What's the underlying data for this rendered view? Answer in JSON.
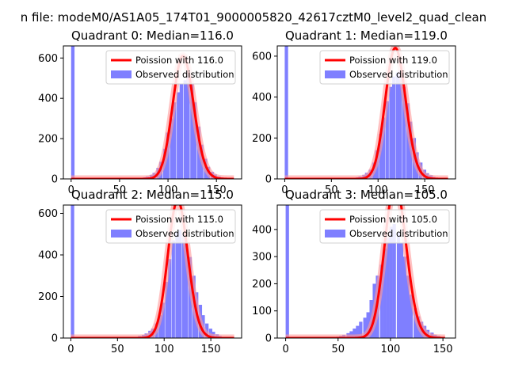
{
  "figure": {
    "suptitle": "n file: modeM0/AS1A05_174T01_9000005820_42617cztM0_level2_quad_clean"
  },
  "colors": {
    "hist": "#7f7fff",
    "fit": "#ff0000",
    "fit_halo": "#ff9a9a"
  },
  "chart_data": [
    {
      "type": "bar",
      "title": "Quadrant 0: Median=116.0",
      "xlim": [
        -8,
        176
      ],
      "ylim": [
        0,
        660
      ],
      "xticks": [
        0,
        50,
        100,
        150
      ],
      "yticks": [
        0,
        200,
        400,
        600
      ],
      "legend": {
        "placement": "top-right",
        "entries": [
          "Poission with 116.0",
          "Observed distribution"
        ]
      },
      "series": [
        {
          "name": "Observed distribution",
          "type": "histogram",
          "bin_width": 3.5,
          "bins": [
            [
              0,
              660
            ],
            [
              70,
              5
            ],
            [
              74,
              8
            ],
            [
              77,
              12
            ],
            [
              81,
              20
            ],
            [
              84,
              30
            ],
            [
              88,
              55
            ],
            [
              91,
              85
            ],
            [
              95,
              150
            ],
            [
              98,
              230
            ],
            [
              102,
              300
            ],
            [
              105,
              380
            ],
            [
              109,
              430
            ],
            [
              112,
              470
            ],
            [
              116,
              490
            ],
            [
              119,
              520
            ],
            [
              123,
              470
            ],
            [
              126,
              380
            ],
            [
              130,
              260
            ],
            [
              133,
              170
            ],
            [
              137,
              100
            ],
            [
              140,
              60
            ],
            [
              144,
              35
            ],
            [
              147,
              22
            ],
            [
              151,
              12
            ],
            [
              154,
              8
            ],
            [
              158,
              5
            ],
            [
              161,
              3
            ]
          ]
        },
        {
          "name": "Poission with 116.0",
          "type": "poisson",
          "lambda": 116.0,
          "x_range": [
            0,
            168
          ]
        }
      ]
    },
    {
      "type": "bar",
      "title": "Quadrant 1: Median=119.0",
      "xlim": [
        -8,
        183
      ],
      "ylim": [
        0,
        650
      ],
      "xticks": [
        0,
        50,
        100,
        150
      ],
      "yticks": [
        0,
        200,
        400,
        600
      ],
      "legend": {
        "placement": "top-right",
        "entries": [
          "Poission with 119.0",
          "Observed distribution"
        ]
      },
      "series": [
        {
          "name": "Observed distribution",
          "type": "histogram",
          "bin_width": 3.6,
          "bins": [
            [
              0,
              650
            ],
            [
              72,
              5
            ],
            [
              76,
              8
            ],
            [
              79,
              12
            ],
            [
              83,
              20
            ],
            [
              86,
              30
            ],
            [
              90,
              45
            ],
            [
              94,
              80
            ],
            [
              97,
              140
            ],
            [
              101,
              220
            ],
            [
              104,
              300
            ],
            [
              108,
              380
            ],
            [
              112,
              450
            ],
            [
              115,
              500
            ],
            [
              119,
              520
            ],
            [
              122,
              530
            ],
            [
              126,
              450
            ],
            [
              130,
              370
            ],
            [
              133,
              280
            ],
            [
              137,
              200
            ],
            [
              140,
              130
            ],
            [
              144,
              80
            ],
            [
              148,
              45
            ],
            [
              151,
              28
            ],
            [
              155,
              18
            ],
            [
              158,
              10
            ],
            [
              162,
              6
            ],
            [
              166,
              3
            ]
          ]
        },
        {
          "name": "Poission with 119.0",
          "type": "poisson",
          "lambda": 119.0,
          "x_range": [
            0,
            175
          ]
        }
      ]
    },
    {
      "type": "bar",
      "title": "Quadrant 2: Median=115.0",
      "xlim": [
        -8,
        183
      ],
      "ylim": [
        0,
        640
      ],
      "xticks": [
        0,
        50,
        100,
        150
      ],
      "yticks": [
        0,
        200,
        400,
        600
      ],
      "legend": {
        "placement": "top-right",
        "entries": [
          "Poission with 115.0",
          "Observed distribution"
        ]
      },
      "series": [
        {
          "name": "Observed distribution",
          "type": "histogram",
          "bin_width": 3.6,
          "bins": [
            [
              0,
              640
            ],
            [
              72,
              10
            ],
            [
              76,
              15
            ],
            [
              79,
              22
            ],
            [
              83,
              35
            ],
            [
              86,
              45
            ],
            [
              90,
              70
            ],
            [
              94,
              110
            ],
            [
              97,
              170
            ],
            [
              101,
              270
            ],
            [
              104,
              380
            ],
            [
              108,
              470
            ],
            [
              112,
              510
            ],
            [
              115,
              520
            ],
            [
              119,
              500
            ],
            [
              122,
              450
            ],
            [
              126,
              390
            ],
            [
              130,
              300
            ],
            [
              133,
              220
            ],
            [
              137,
              160
            ],
            [
              140,
              110
            ],
            [
              144,
              70
            ],
            [
              148,
              45
            ],
            [
              151,
              30
            ],
            [
              155,
              18
            ],
            [
              158,
              10
            ],
            [
              162,
              5
            ]
          ]
        },
        {
          "name": "Poission with 115.0",
          "type": "poisson",
          "lambda": 115.0,
          "x_range": [
            0,
            175
          ]
        }
      ]
    },
    {
      "type": "bar",
      "title": "Quadrant 3: Median=105.0",
      "xlim": [
        -8,
        162
      ],
      "ylim": [
        0,
        490
      ],
      "xticks": [
        0,
        50,
        100,
        150
      ],
      "yticks": [
        0,
        100,
        200,
        300,
        400
      ],
      "legend": {
        "placement": "top-right",
        "entries": [
          "Poission with 105.0",
          "Observed distribution"
        ]
      },
      "series": [
        {
          "name": "Observed distribution",
          "type": "histogram",
          "bin_width": 3.2,
          "bins": [
            [
              0,
              490
            ],
            [
              45,
              3
            ],
            [
              48,
              5
            ],
            [
              51,
              8
            ],
            [
              54,
              12
            ],
            [
              58,
              18
            ],
            [
              61,
              25
            ],
            [
              64,
              35
            ],
            [
              67,
              45
            ],
            [
              70,
              60
            ],
            [
              74,
              75
            ],
            [
              77,
              95
            ],
            [
              80,
              140
            ],
            [
              83,
              200
            ],
            [
              86,
              230
            ],
            [
              90,
              270
            ],
            [
              93,
              330
            ],
            [
              96,
              370
            ],
            [
              99,
              410
            ],
            [
              102,
              420
            ],
            [
              106,
              390
            ],
            [
              109,
              350
            ],
            [
              112,
              300
            ],
            [
              115,
              230
            ],
            [
              118,
              160
            ],
            [
              122,
              110
            ],
            [
              125,
              80
            ],
            [
              128,
              60
            ],
            [
              131,
              45
            ],
            [
              134,
              30
            ],
            [
              138,
              20
            ],
            [
              141,
              12
            ],
            [
              144,
              8
            ]
          ]
        },
        {
          "name": "Poission with 105.0",
          "type": "poisson",
          "lambda": 105.0,
          "x_range": [
            0,
            152
          ]
        }
      ]
    }
  ]
}
